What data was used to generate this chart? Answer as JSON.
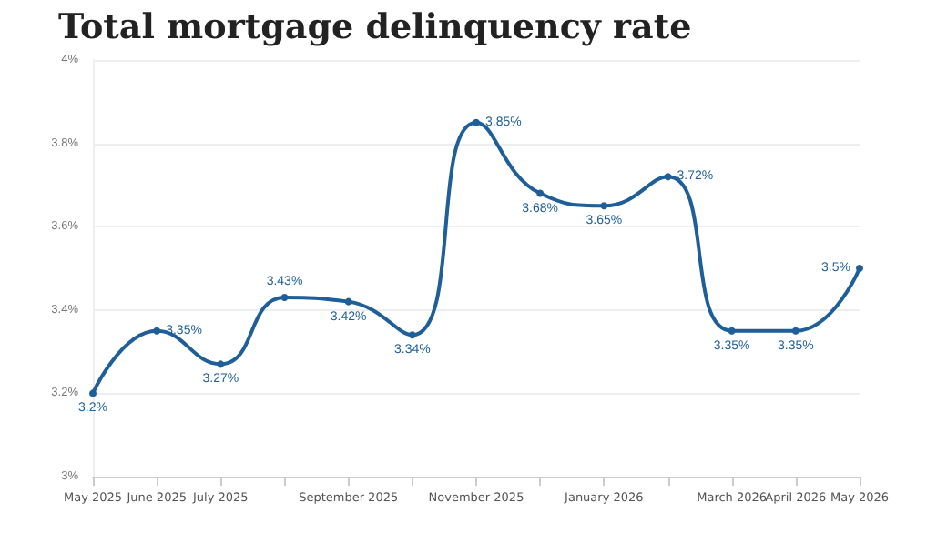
{
  "chart_data": {
    "type": "line",
    "title": "Total mortgage delinquency rate",
    "categories": [
      "May 2025",
      "June 2025",
      "July 2025",
      null,
      "September 2025",
      null,
      "November 2025",
      null,
      "January 2026",
      null,
      "March 2026",
      "April 2026",
      "May 2026"
    ],
    "series": [
      {
        "color": "#1f5f99",
        "values": [
          3.2,
          3.35,
          3.27,
          3.43,
          3.42,
          3.34,
          3.85,
          3.68,
          3.65,
          3.72,
          3.35,
          3.35,
          3.5
        ],
        "value_labels": [
          "3.2%",
          "3.35%",
          "3.27%",
          "3.43%",
          "3.42%",
          "3.34%",
          "3.85%",
          "3.68%",
          "3.65%",
          "3.72%",
          "3.35%",
          "3.35%",
          "3.5%"
        ]
      }
    ],
    "ylim": [
      3,
      4
    ],
    "yticks": [
      {
        "value": 3,
        "label": "3%"
      },
      {
        "value": 3.2,
        "label": "3.2%"
      },
      {
        "value": 3.4,
        "label": "3.4%"
      },
      {
        "value": 3.6,
        "label": "3.6%"
      },
      {
        "value": 3.8,
        "label": "3.8%"
      },
      {
        "value": 4,
        "label": "4%"
      }
    ],
    "grid": "y",
    "marker": "circle",
    "line_style": "solid"
  }
}
